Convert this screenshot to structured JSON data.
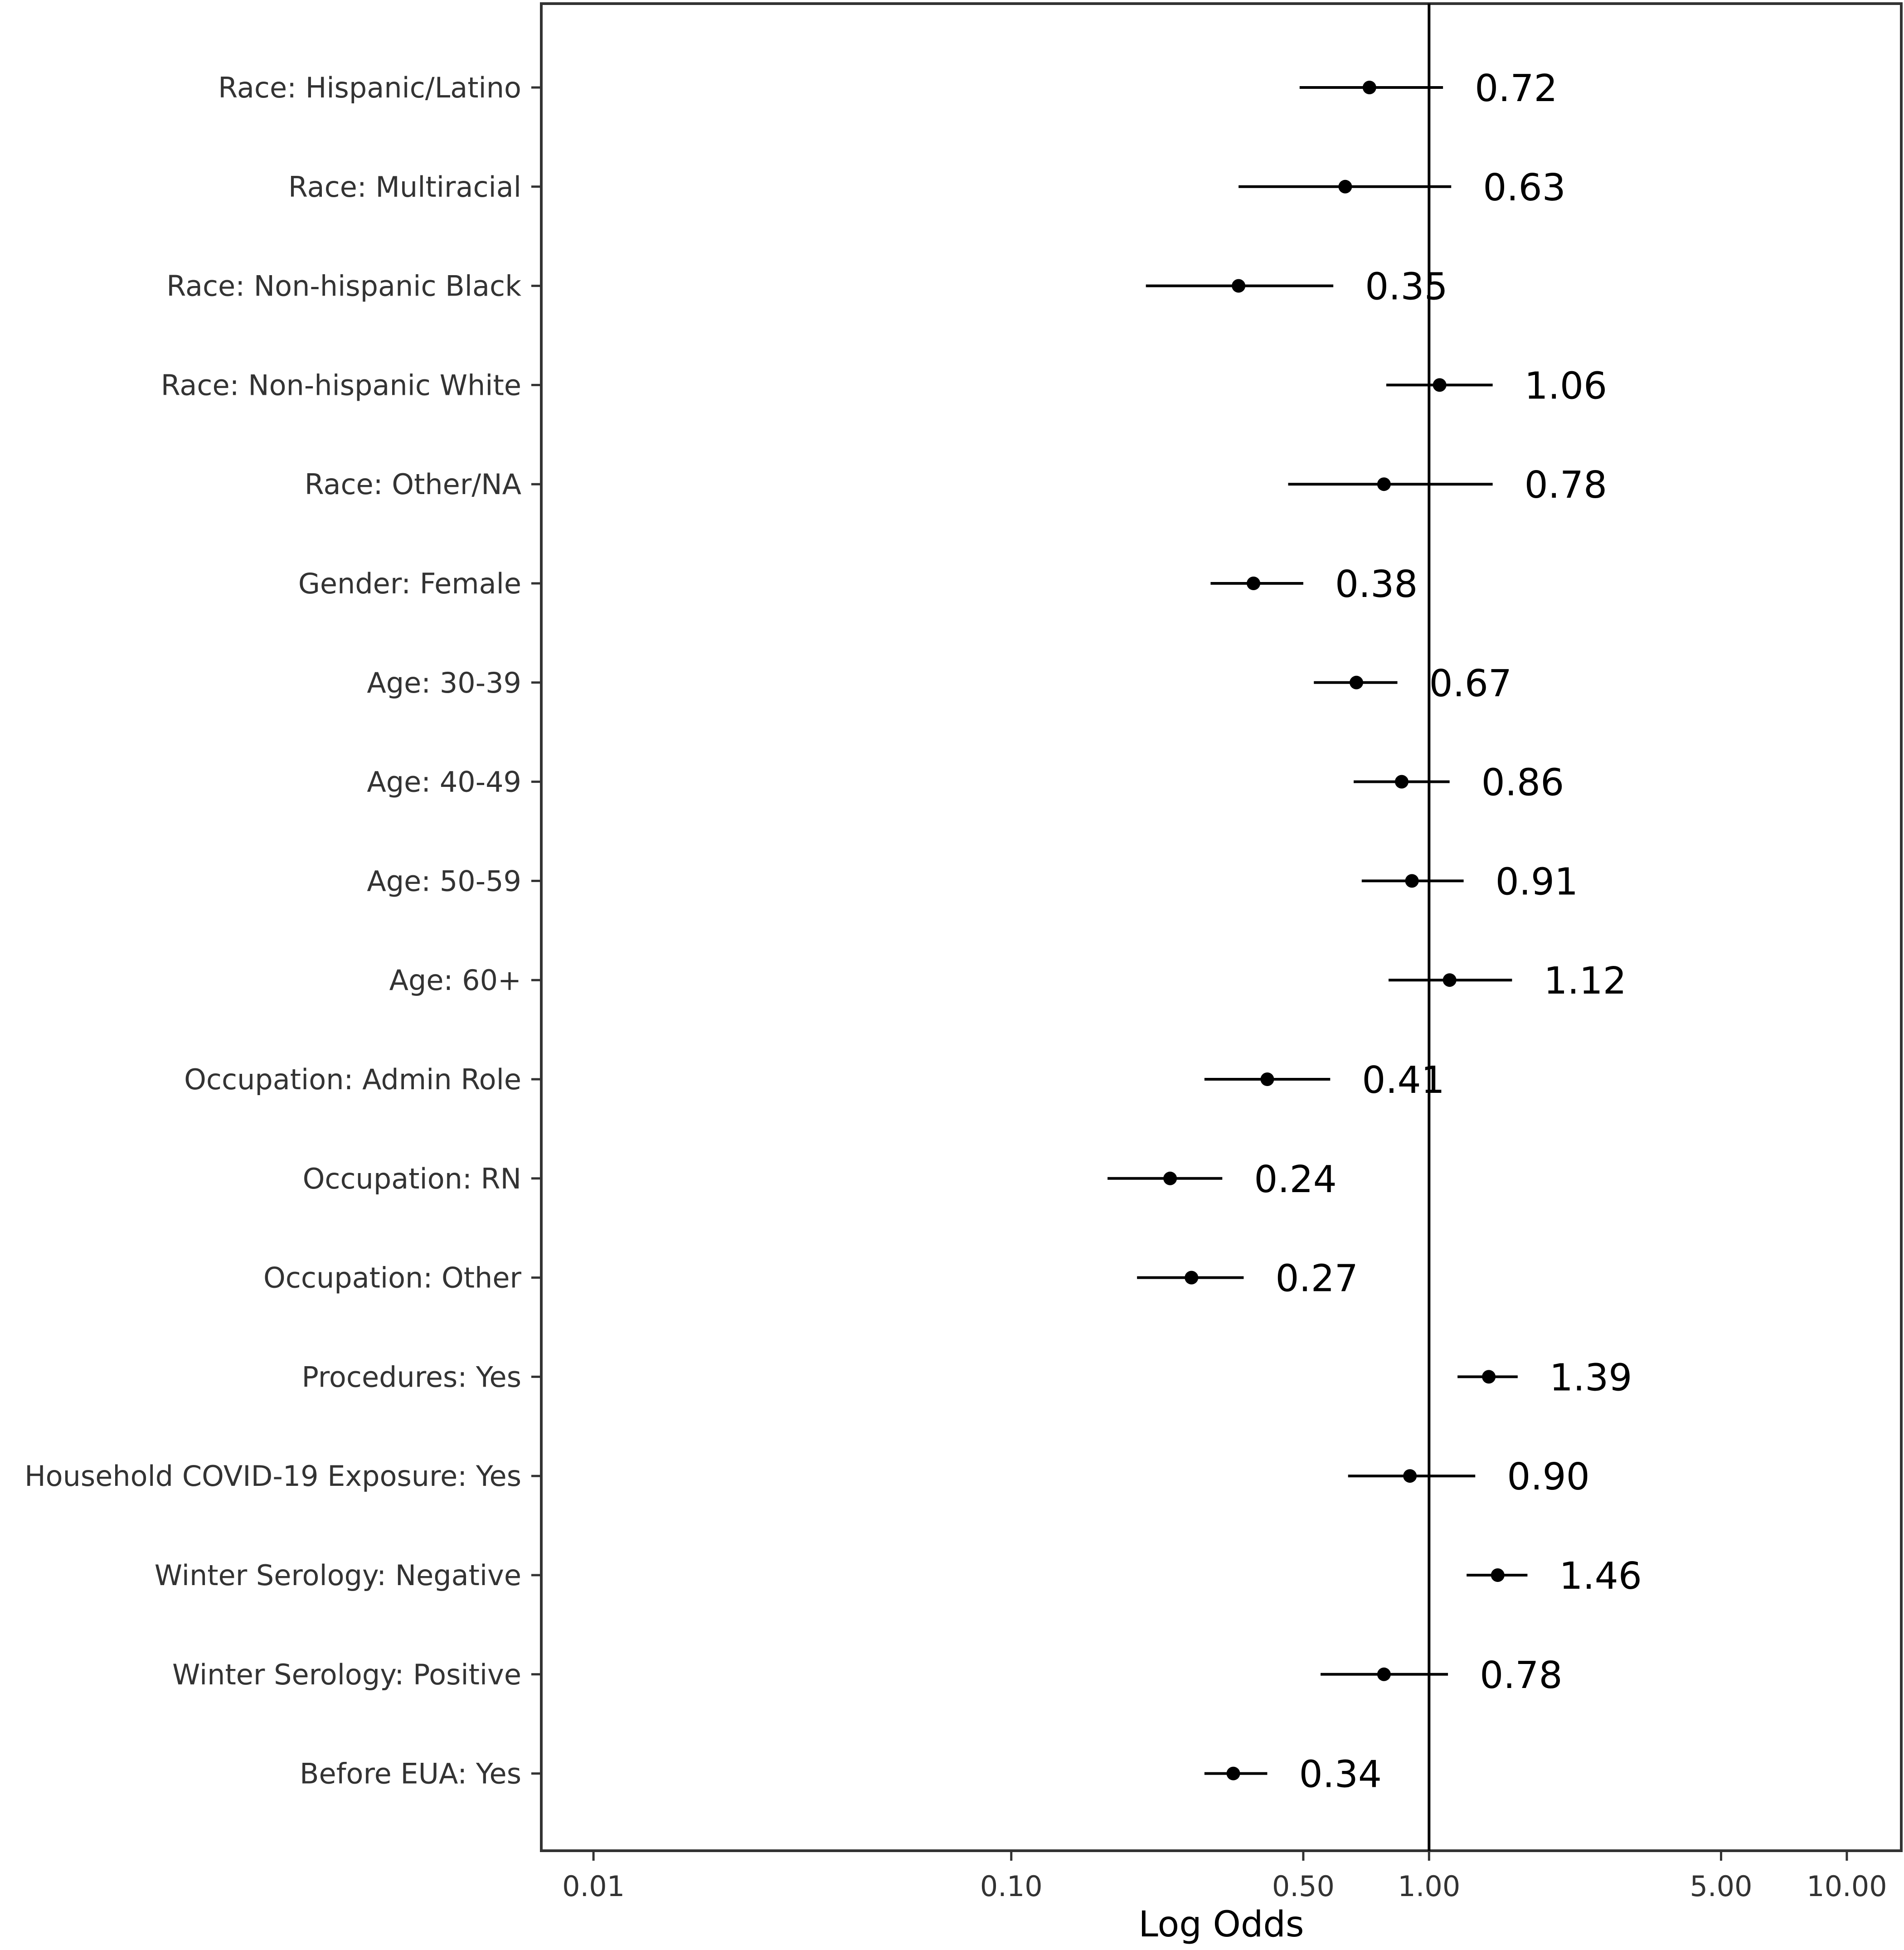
{
  "chart_data": {
    "type": "forest",
    "xlabel": "Log Odds",
    "x_scale": "log",
    "xlim": [
      0.0075,
      13.5
    ],
    "x_ticks": [
      {
        "value": 0.01,
        "label": "0.01"
      },
      {
        "value": 0.1,
        "label": "0.10"
      },
      {
        "value": 0.5,
        "label": "0.50"
      },
      {
        "value": 1.0,
        "label": "1.00"
      },
      {
        "value": 5.0,
        "label": "5.00"
      },
      {
        "value": 10.0,
        "label": "10.00"
      }
    ],
    "reference_line": 1.0,
    "rows": [
      {
        "label": "Race: Hispanic/Latino",
        "estimate": 0.72,
        "lower": 0.49,
        "upper": 1.08,
        "value_label": "0.72"
      },
      {
        "label": "Race: Multiracial",
        "estimate": 0.63,
        "lower": 0.35,
        "upper": 1.13,
        "value_label": "0.63"
      },
      {
        "label": "Race: Non-hispanic Black",
        "estimate": 0.35,
        "lower": 0.21,
        "upper": 0.59,
        "value_label": "0.35"
      },
      {
        "label": "Race: Non-hispanic White",
        "estimate": 1.06,
        "lower": 0.79,
        "upper": 1.42,
        "value_label": "1.06"
      },
      {
        "label": "Race: Other/NA",
        "estimate": 0.78,
        "lower": 0.46,
        "upper": 1.42,
        "value_label": "0.78"
      },
      {
        "label": "Gender: Female",
        "estimate": 0.38,
        "lower": 0.3,
        "upper": 0.5,
        "value_label": "0.38"
      },
      {
        "label": "Age: 30-39",
        "estimate": 0.67,
        "lower": 0.53,
        "upper": 0.84,
        "value_label": "0.67"
      },
      {
        "label": "Age: 40-49",
        "estimate": 0.86,
        "lower": 0.66,
        "upper": 1.12,
        "value_label": "0.86"
      },
      {
        "label": "Age: 50-59",
        "estimate": 0.91,
        "lower": 0.69,
        "upper": 1.21,
        "value_label": "0.91"
      },
      {
        "label": "Age: 60+",
        "estimate": 1.12,
        "lower": 0.8,
        "upper": 1.58,
        "value_label": "1.12"
      },
      {
        "label": "Occupation: Admin Role",
        "estimate": 0.41,
        "lower": 0.29,
        "upper": 0.58,
        "value_label": "0.41"
      },
      {
        "label": "Occupation: RN",
        "estimate": 0.24,
        "lower": 0.17,
        "upper": 0.32,
        "value_label": "0.24"
      },
      {
        "label": "Occupation: Other",
        "estimate": 0.27,
        "lower": 0.2,
        "upper": 0.36,
        "value_label": "0.27"
      },
      {
        "label": "Procedures: Yes",
        "estimate": 1.39,
        "lower": 1.17,
        "upper": 1.63,
        "value_label": "1.39"
      },
      {
        "label": "Household COVID-19 Exposure: Yes",
        "estimate": 0.9,
        "lower": 0.64,
        "upper": 1.29,
        "value_label": "0.90"
      },
      {
        "label": "Winter Serology: Negative",
        "estimate": 1.46,
        "lower": 1.23,
        "upper": 1.72,
        "value_label": "1.46"
      },
      {
        "label": "Winter Serology: Positive",
        "estimate": 0.78,
        "lower": 0.55,
        "upper": 1.11,
        "value_label": "0.78"
      },
      {
        "label": "Before EUA: Yes",
        "estimate": 0.34,
        "lower": 0.29,
        "upper": 0.41,
        "value_label": "0.34"
      }
    ],
    "grid": false,
    "legend": "none"
  }
}
